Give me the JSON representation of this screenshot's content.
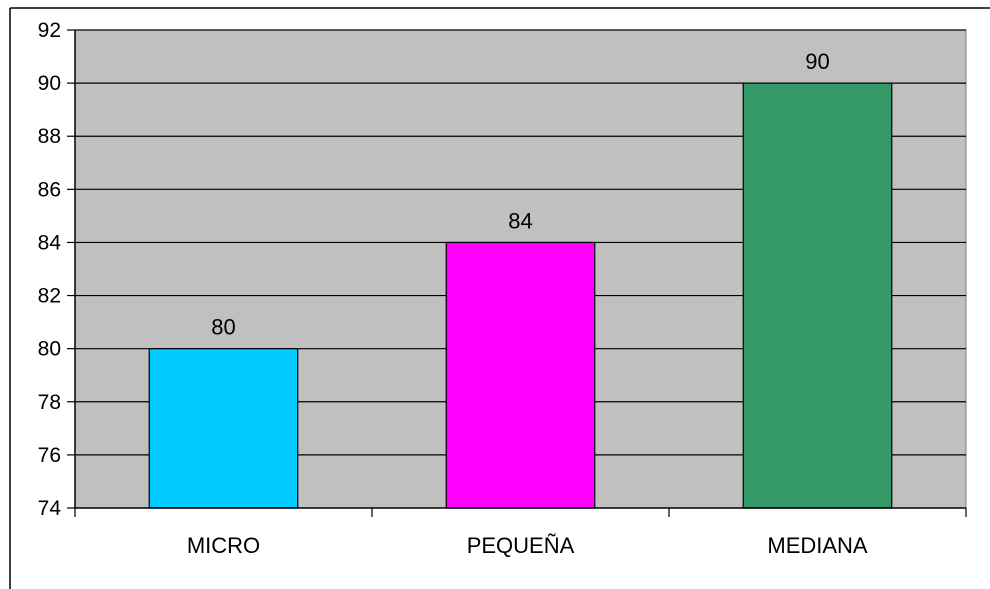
{
  "chart_data": {
    "type": "bar",
    "categories": [
      "MICRO",
      "PEQUEÑA",
      "MEDIANA"
    ],
    "values": [
      80,
      84,
      90
    ],
    "data_labels": [
      "80",
      "84",
      "90"
    ],
    "bar_colors": [
      "#00CCFF",
      "#FF00FF",
      "#339966"
    ],
    "plot_background": "#C0C0C0",
    "title": "",
    "xlabel": "",
    "ylabel": "",
    "ylim": [
      74,
      92
    ],
    "yticks": [
      74,
      76,
      78,
      80,
      82,
      84,
      86,
      88,
      90,
      92
    ],
    "grid": true,
    "legend": "none"
  }
}
